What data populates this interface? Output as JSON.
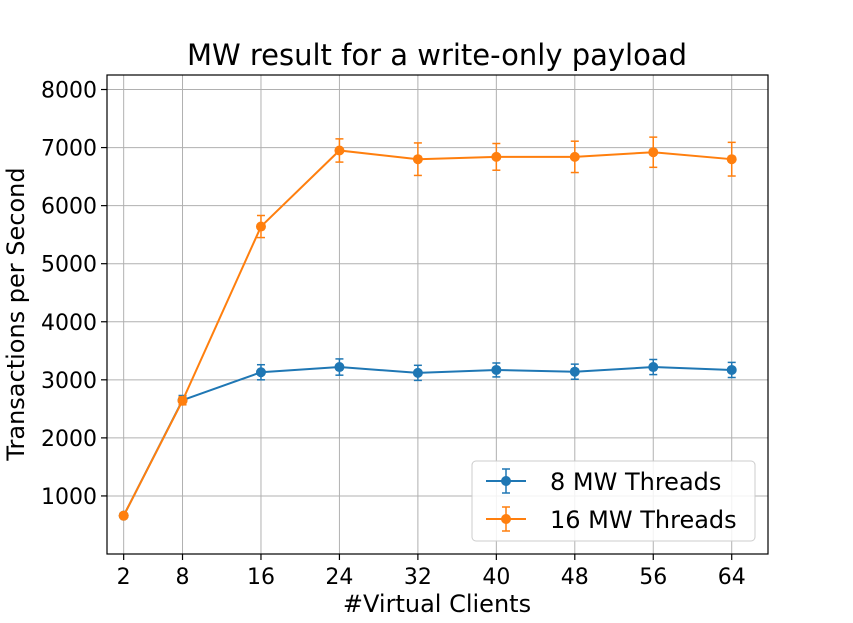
{
  "chart_data": {
    "type": "line",
    "title": "MW result for a write-only payload",
    "xlabel": "#Virtual Clients",
    "ylabel": "Transactions per Second",
    "x": [
      2,
      8,
      16,
      24,
      32,
      40,
      48,
      56,
      64
    ],
    "xticks": [
      2,
      8,
      16,
      24,
      32,
      40,
      48,
      56,
      64
    ],
    "yticks": [
      1000,
      2000,
      3000,
      4000,
      5000,
      6000,
      7000,
      8000
    ],
    "xlim": [
      0.3,
      67.7
    ],
    "ylim": [
      0,
      8250
    ],
    "grid": true,
    "legend_position": "lower-right",
    "series": [
      {
        "name": "8 MW Threads",
        "color": "#1f77b4",
        "values": [
          660,
          2650,
          3130,
          3220,
          3120,
          3170,
          3140,
          3220,
          3170
        ],
        "errors": [
          20,
          80,
          130,
          140,
          130,
          120,
          130,
          130,
          130
        ]
      },
      {
        "name": "16 MW Threads",
        "color": "#ff7f0e",
        "values": [
          660,
          2640,
          5640,
          6950,
          6800,
          6840,
          6840,
          6920,
          6800
        ],
        "errors": [
          20,
          70,
          190,
          200,
          280,
          230,
          270,
          260,
          290
        ]
      }
    ]
  }
}
